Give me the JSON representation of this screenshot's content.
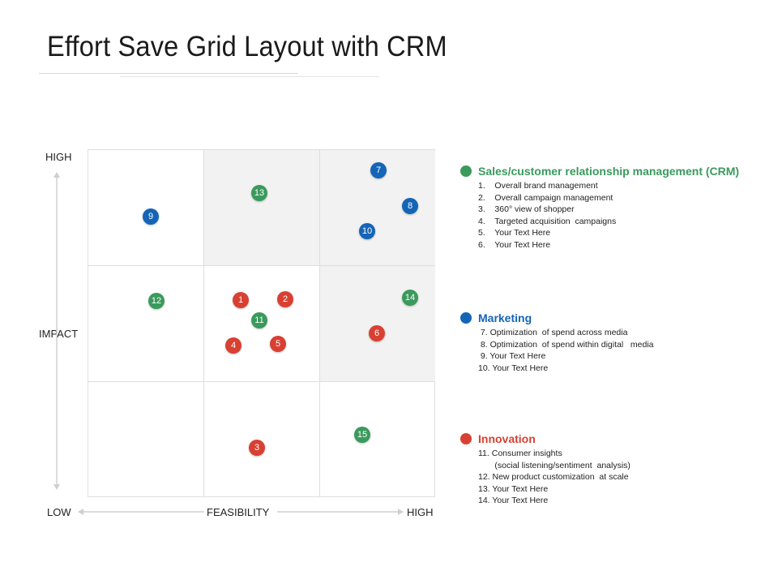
{
  "title": "Effort Save Grid Layout with CRM",
  "axes": {
    "y_high": "HIGH",
    "y_label": "IMPACT",
    "x_low": "LOW",
    "x_label": "FEASIBILITY",
    "x_high": "HIGH"
  },
  "colors": {
    "green": "#3a9a5c",
    "blue": "#1565b7",
    "red": "#d84032",
    "shade": "#f2f2f2"
  },
  "dots": [
    {
      "label": "1",
      "color": "red"
    },
    {
      "label": "2",
      "color": "red"
    },
    {
      "label": "3",
      "color": "red"
    },
    {
      "label": "4",
      "color": "red"
    },
    {
      "label": "5",
      "color": "red"
    },
    {
      "label": "6",
      "color": "red"
    },
    {
      "label": "7",
      "color": "blue"
    },
    {
      "label": "8",
      "color": "blue"
    },
    {
      "label": "9",
      "color": "blue"
    },
    {
      "label": "10",
      "color": "blue"
    },
    {
      "label": "11",
      "color": "green"
    },
    {
      "label": "12",
      "color": "green"
    },
    {
      "label": "13",
      "color": "green"
    },
    {
      "label": "14",
      "color": "green"
    },
    {
      "label": "15",
      "color": "green"
    }
  ],
  "legend": {
    "crm": {
      "heading": "Sales/customer relationship management (CRM)",
      "items": [
        "1.    Overall brand management",
        "2.    Overall campaign management",
        "3.    360° view of shopper",
        "4.    Targeted acquisition  campaigns",
        "5.    Your Text Here",
        "6.    Your Text Here"
      ]
    },
    "marketing": {
      "heading": "Marketing",
      "items": [
        " 7. Optimization  of spend across media",
        " 8. Optimization  of spend within digital   media",
        " 9. Your Text Here",
        "10. Your Text Here"
      ]
    },
    "innovation": {
      "heading": "Innovation",
      "items": [
        "11. Consumer insights",
        "       (social listening/sentiment  analysis)",
        "12. New product customization  at scale",
        "13. Your Text Here",
        "14. Your Text Here"
      ]
    }
  }
}
